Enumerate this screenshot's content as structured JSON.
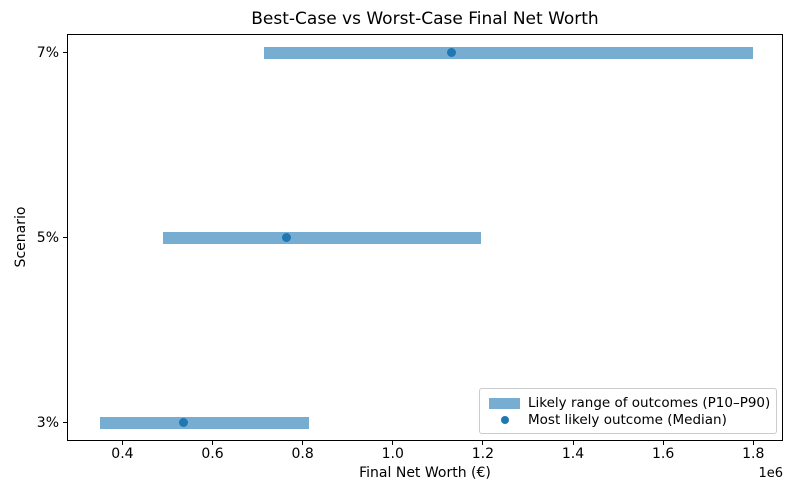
{
  "figure": {
    "title": "Best-Case vs Worst-Case Final Net Worth",
    "xlabel": "Final Net Worth (€)",
    "ylabel": "Scenario",
    "x_offset_label": "1e6"
  },
  "legend": {
    "range_label": "Likely range of outcomes (P10–P90)",
    "median_label": "Most likely outcome (Median)"
  },
  "colors": {
    "bar": "#78add2",
    "dot": "#1f77b4",
    "spine": "#000000",
    "text": "#000000",
    "legend_border": "#cccccc",
    "background": "#ffffff"
  },
  "chart_data": {
    "type": "bar",
    "subtype": "horizontal-range-bars-with-median-markers",
    "title": "Best-Case vs Worst-Case Final Net Worth",
    "xlabel": "Final Net Worth (€)",
    "ylabel": "Scenario",
    "categories": [
      "7%",
      "5%",
      "3%"
    ],
    "scenarios": [
      {
        "label": "7%",
        "y": 2,
        "p10": 715000,
        "median": 1130000,
        "p90": 1800000
      },
      {
        "label": "5%",
        "y": 1,
        "p10": 490000,
        "median": 765000,
        "p90": 1195000
      },
      {
        "label": "3%",
        "y": 0,
        "p10": 350000,
        "median": 535000,
        "p90": 815000
      }
    ],
    "xlim": [
      277000,
      1866000
    ],
    "ylim": [
      -0.1,
      2.1
    ],
    "xticks": [
      400000,
      600000,
      800000,
      1000000,
      1200000,
      1400000,
      1600000,
      1800000
    ],
    "xtick_labels": [
      "0.4",
      "0.6",
      "0.8",
      "1.0",
      "1.2",
      "1.4",
      "1.6",
      "1.8"
    ],
    "x_scale_note": "1e6",
    "grid": false,
    "legend_position": "lower right",
    "legend_entries": [
      "Likely range of outcomes (P10–P90)",
      "Most likely outcome (Median)"
    ]
  }
}
